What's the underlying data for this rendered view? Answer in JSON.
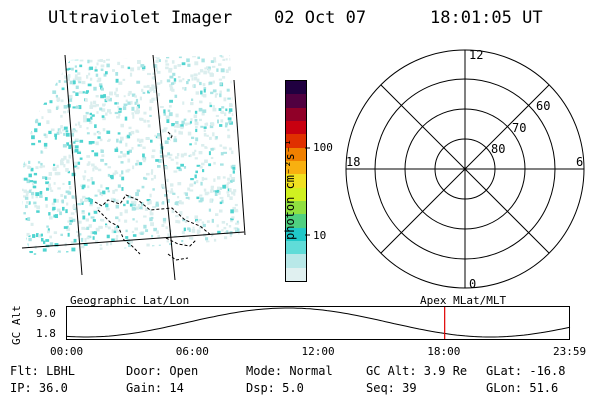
{
  "header": {
    "instrument": "Ultraviolet Imager",
    "date": "02 Oct 07",
    "time": "18:01:05 UT"
  },
  "colorbar": {
    "unit_label": "photon cm⁻²s⁻¹",
    "tick_100": "100",
    "tick_10": "10",
    "colors": [
      "#e0f0f0",
      "#b8e8e8",
      "#60dcd8",
      "#20c8c8",
      "#50d080",
      "#90e040",
      "#d0f020",
      "#f0e020",
      "#f8b010",
      "#f08000",
      "#e03000",
      "#c80010",
      "#900028",
      "#500040",
      "#200040"
    ]
  },
  "polar_plot": {
    "mlt_12": "12",
    "mlt_18": "18",
    "mlt_6": "6",
    "mlt_0": "0",
    "lat_60": "60",
    "lat_70": "70",
    "lat_80": "80"
  },
  "orbit_strip": {
    "left_label": "Geographic Lat/Lon",
    "right_label": "Apex MLat/MLT",
    "axis_label": "GC Alt",
    "y_max": "9.0",
    "y_min": "1.8",
    "x_ticks": [
      "00:00",
      "06:00",
      "12:00",
      "18:00",
      "23:59"
    ],
    "current_time_hours": 18.02,
    "marker_color": "#e00000"
  },
  "info": {
    "flt": "Flt: LBHL",
    "ip": "IP: 36.0",
    "door": "Door: Open",
    "gain": "Gain: 14",
    "mode": "Mode: Normal",
    "dsp": "Dsp:    5.0",
    "gc_alt": "GC Alt: 3.9 Re",
    "seq": "Seq: 39",
    "glat": "GLat: -16.8",
    "glon": "GLon:  51.6"
  }
}
